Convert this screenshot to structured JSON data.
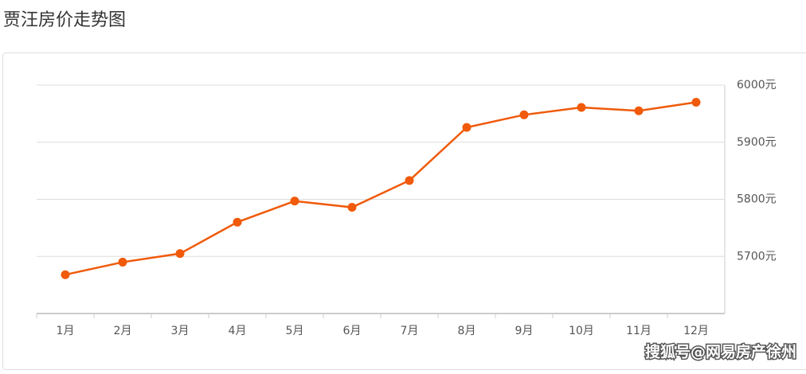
{
  "chart_data": {
    "type": "line",
    "title": "贾汪房价走势图",
    "categories": [
      "1月",
      "2月",
      "3月",
      "4月",
      "5月",
      "6月",
      "7月",
      "8月",
      "9月",
      "10月",
      "11月",
      "12月"
    ],
    "series": [
      {
        "name": "房价",
        "color": "#f05a0a",
        "values": [
          5668,
          5690,
          5705,
          5760,
          5797,
          5786,
          5833,
          5926,
          5948,
          5961,
          5955,
          5970
        ]
      }
    ],
    "ylim": [
      5600,
      6000
    ],
    "yticks": [
      {
        "value": 5700,
        "label": "5700元"
      },
      {
        "value": 5800,
        "label": "5800元"
      },
      {
        "value": 5900,
        "label": "5900元"
      },
      {
        "value": 6000,
        "label": "6000元"
      }
    ],
    "grid": true,
    "annotations": [
      "搜狐号@网易房产徐州"
    ]
  }
}
